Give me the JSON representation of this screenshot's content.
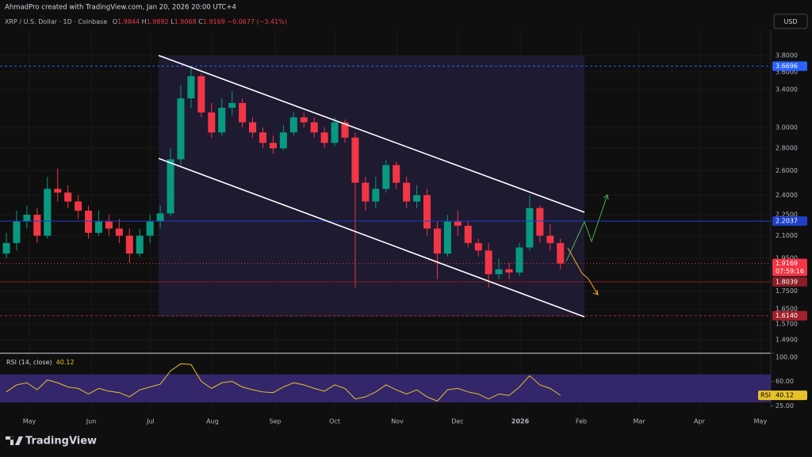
{
  "header": {
    "credit": "AhmadPro created with TradingView.com, Jan 20, 2026 20:00 UTC+4"
  },
  "legend": {
    "symbol": "XRP / U.S. Dollar · 1D · Coinbase",
    "o_key": "O",
    "open": "1.9844",
    "h_key": "H",
    "high": "1.9892",
    "l_key": "L",
    "low": "1.9068",
    "c_key": "C",
    "close": "1.9169",
    "change": "−0.0677 (−3.41%)"
  },
  "currency": "USD",
  "chart_data": {
    "type": "candlestick",
    "ylog": true,
    "ylim": [
      1.43,
      4.11
    ],
    "yticks": [
      {
        "value": 3.8,
        "label": "3.8000"
      },
      {
        "value": 3.6,
        "label": "3.6000"
      },
      {
        "value": 3.4,
        "label": "3.4000"
      },
      {
        "value": 3.0,
        "label": "3.0000"
      },
      {
        "value": 2.8,
        "label": "2.8000"
      },
      {
        "value": 2.6,
        "label": "2.6000"
      },
      {
        "value": 2.4,
        "label": "2.4000"
      },
      {
        "value": 2.25,
        "label": "2.2500"
      },
      {
        "value": 2.1,
        "label": "2.1000"
      },
      {
        "value": 1.95,
        "label": "1.9500"
      },
      {
        "value": 1.75,
        "label": "1.7500"
      },
      {
        "value": 1.65,
        "label": "1.6500"
      },
      {
        "value": 1.57,
        "label": "1.5700"
      },
      {
        "value": 1.49,
        "label": "1.4900"
      }
    ],
    "xlim": [
      -0.62,
      74.5
    ],
    "xticks": [
      {
        "value": 2.24,
        "label": "May"
      },
      {
        "value": 8.27,
        "label": "Jun"
      },
      {
        "value": 14.06,
        "label": "Jul"
      },
      {
        "value": 20.09,
        "label": "Aug"
      },
      {
        "value": 26.2,
        "label": "Sep"
      },
      {
        "value": 32.0,
        "label": "Oct"
      },
      {
        "value": 38.1,
        "label": "Nov"
      },
      {
        "value": 43.97,
        "label": "Dec"
      },
      {
        "value": 50.08,
        "label": "2026"
      },
      {
        "value": 56.03,
        "label": "Feb"
      },
      {
        "value": 61.67,
        "label": "Mar"
      },
      {
        "value": 67.54,
        "label": "Apr"
      },
      {
        "value": 73.49,
        "label": "May"
      }
    ],
    "up_color": "#089981",
    "down_color": "#f23645",
    "open": [
      1.98,
      2.05,
      2.2,
      2.25,
      2.1,
      2.45,
      2.42,
      2.35,
      2.28,
      2.12,
      2.2,
      2.15,
      2.1,
      1.98,
      2.1,
      2.2,
      2.26,
      2.7,
      3.3,
      3.55,
      3.15,
      2.95,
      3.2,
      3.25,
      3.05,
      2.95,
      2.85,
      2.8,
      2.95,
      3.1,
      3.05,
      2.95,
      2.85,
      3.05,
      2.9,
      2.5,
      2.35,
      2.45,
      2.65,
      2.5,
      2.35,
      2.4,
      2.15,
      1.98,
      2.2,
      2.17,
      2.05,
      2.0,
      1.85,
      1.88,
      1.86,
      2.02,
      2.3,
      2.1,
      2.05
    ],
    "high": [
      2.12,
      2.28,
      2.32,
      2.3,
      2.55,
      2.62,
      2.48,
      2.4,
      2.32,
      2.28,
      2.25,
      2.22,
      2.15,
      2.15,
      2.25,
      2.32,
      2.8,
      3.45,
      3.67,
      3.58,
      3.25,
      3.3,
      3.38,
      3.3,
      3.1,
      3.0,
      2.92,
      3.02,
      3.15,
      3.15,
      3.1,
      3.0,
      3.1,
      3.08,
      2.95,
      2.55,
      2.55,
      2.7,
      2.68,
      2.55,
      2.48,
      2.45,
      2.2,
      2.25,
      2.28,
      2.2,
      2.08,
      2.05,
      1.95,
      1.92,
      2.05,
      2.4,
      2.32,
      2.18,
      2.08
    ],
    "low": [
      1.95,
      2.0,
      2.15,
      2.05,
      2.08,
      2.35,
      2.3,
      2.22,
      2.08,
      2.1,
      2.1,
      2.05,
      1.92,
      1.96,
      2.05,
      2.15,
      2.24,
      2.65,
      3.2,
      3.1,
      2.9,
      2.92,
      3.12,
      3.0,
      2.9,
      2.8,
      2.75,
      2.78,
      2.92,
      3.0,
      2.9,
      2.8,
      2.82,
      2.85,
      1.77,
      2.28,
      2.3,
      2.42,
      2.45,
      2.3,
      2.3,
      2.1,
      1.82,
      1.96,
      2.1,
      2.02,
      1.96,
      1.77,
      1.82,
      1.82,
      1.84,
      2.0,
      2.05,
      2.0,
      1.88
    ],
    "close": [
      2.05,
      2.2,
      2.25,
      2.1,
      2.45,
      2.42,
      2.35,
      2.28,
      2.12,
      2.2,
      2.15,
      2.1,
      1.98,
      2.1,
      2.2,
      2.26,
      2.7,
      3.3,
      3.55,
      3.15,
      2.95,
      3.2,
      3.25,
      3.05,
      2.95,
      2.85,
      2.8,
      2.95,
      3.1,
      3.05,
      2.95,
      2.85,
      3.05,
      2.9,
      2.5,
      2.35,
      2.45,
      2.65,
      2.5,
      2.35,
      2.4,
      2.15,
      1.98,
      2.2,
      2.17,
      2.05,
      2.0,
      1.85,
      1.88,
      1.86,
      2.02,
      2.3,
      2.1,
      2.05,
      1.9169
    ],
    "levels": [
      {
        "price": 3.6696,
        "label": "3.6696",
        "color": "#2962ff",
        "style": "dashed"
      },
      {
        "price": 2.2037,
        "label": "2.2037",
        "color": "#1e40c8",
        "style": "solid"
      },
      {
        "price": 1.8039,
        "label": "1.8039",
        "color": "#8a1c24",
        "style": "solid"
      },
      {
        "price": 1.614,
        "label": "1.6140",
        "color": "#a3222b",
        "style": "dashed"
      }
    ],
    "last_price": {
      "price": 1.9169,
      "label": "1.9169",
      "countdown": "07:59:16",
      "color": "#f23645"
    },
    "rsi": {
      "title": "RSI (14, close)",
      "value_label": "40.12",
      "axis_tag": "RSI",
      "color": "#e6c229",
      "band": [
        30,
        70
      ],
      "band_color": "#3b2a7a",
      "ylim": [
        20,
        100
      ],
      "yticks": [
        {
          "value": 100,
          "label": "100.00"
        },
        {
          "value": 60,
          "label": "60.00"
        },
        {
          "value": 25,
          "label": "25.00"
        }
      ],
      "values": [
        45,
        55,
        58,
        48,
        62,
        58,
        52,
        50,
        42,
        50,
        46,
        44,
        38,
        48,
        52,
        56,
        75,
        85,
        84,
        60,
        50,
        58,
        60,
        52,
        48,
        45,
        44,
        52,
        58,
        55,
        50,
        46,
        55,
        50,
        35,
        38,
        45,
        55,
        48,
        42,
        48,
        38,
        32,
        48,
        50,
        45,
        42,
        35,
        42,
        40,
        52,
        68,
        55,
        50,
        40.12
      ]
    }
  },
  "footer": {
    "brand": "TradingView"
  }
}
